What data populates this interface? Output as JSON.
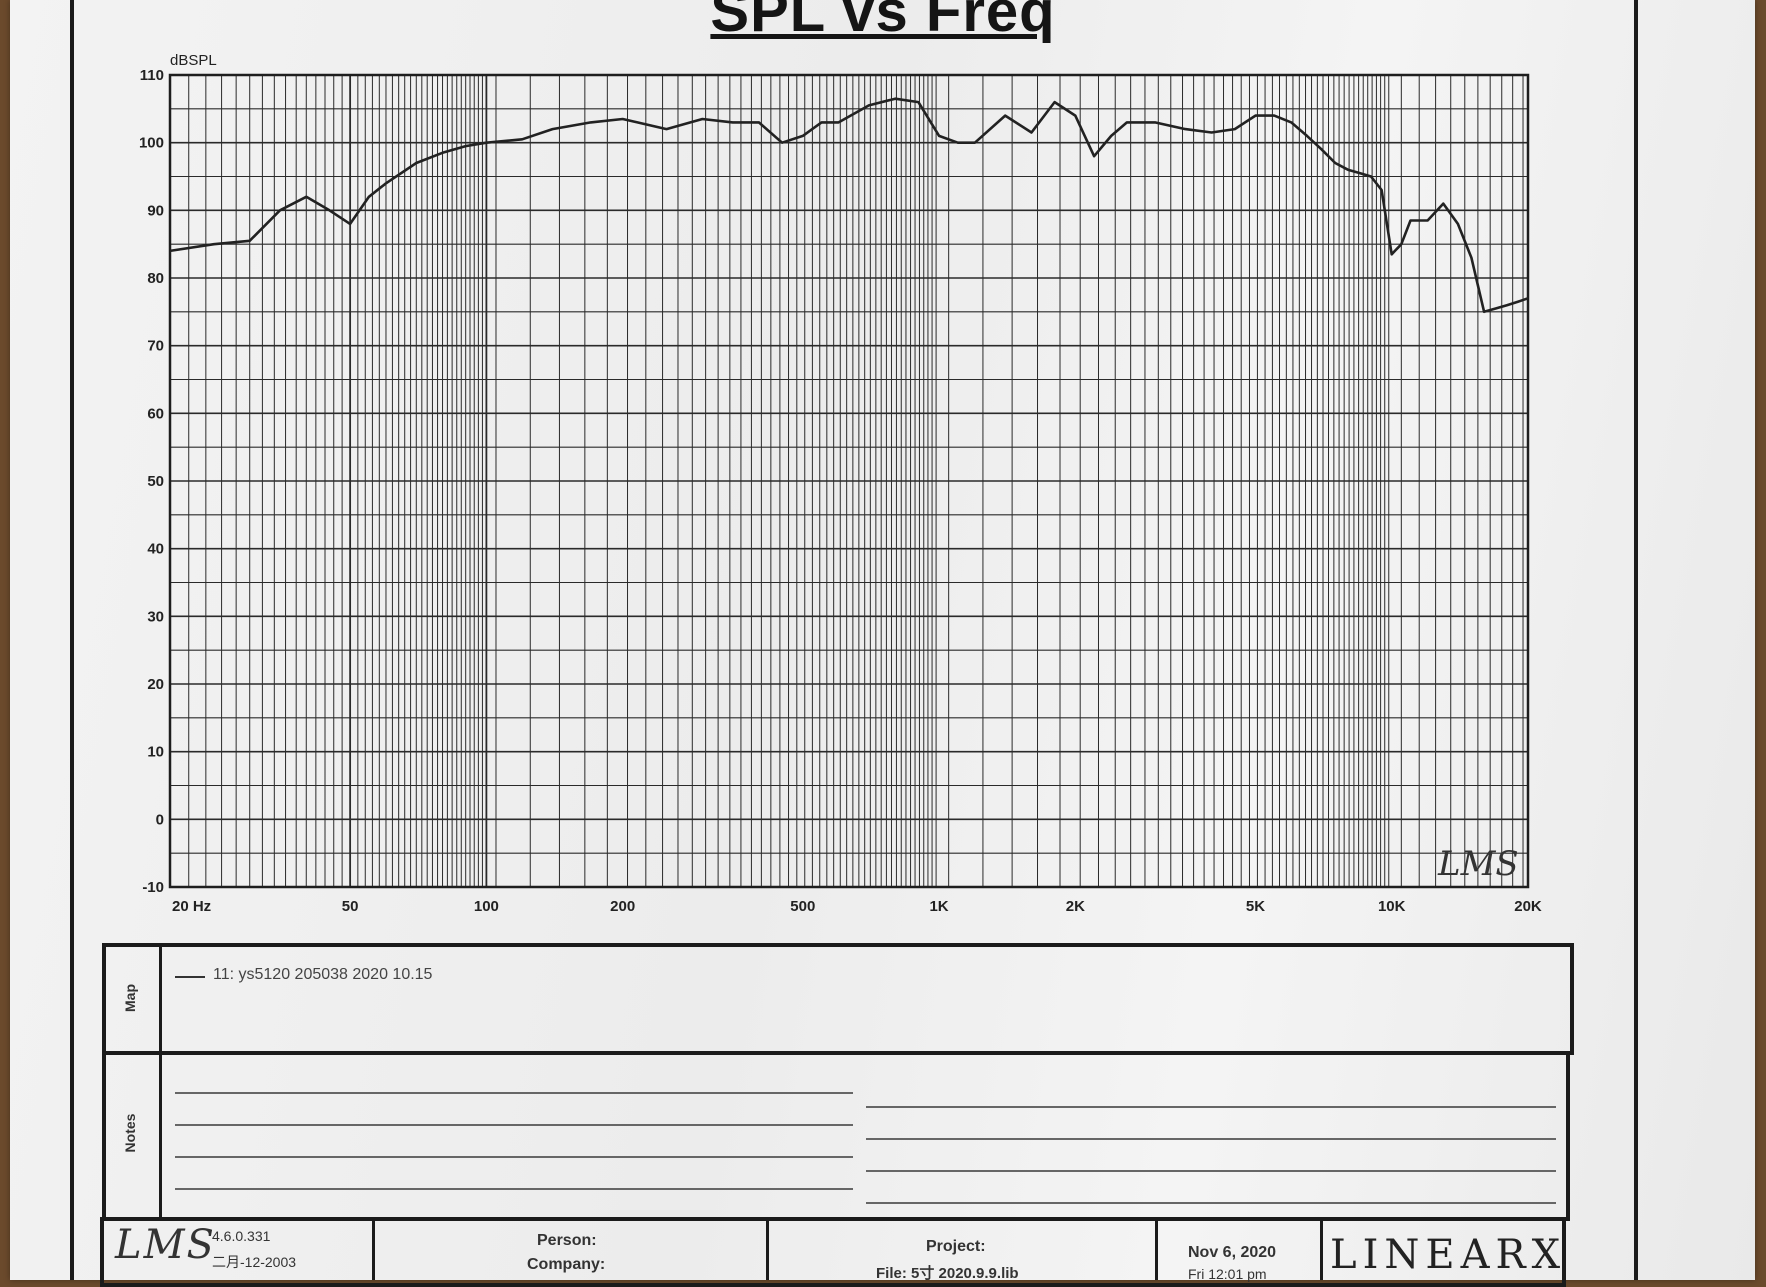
{
  "chart_data": {
    "type": "line",
    "title": "SPL vs Freq",
    "ylabel": "dBSPL",
    "ylim": [
      -10,
      110
    ],
    "y_ticks": [
      "110",
      "100",
      "90",
      "80",
      "70",
      "60",
      "50",
      "40",
      "30",
      "20",
      "10",
      "0",
      "-10"
    ],
    "x_scale": "log",
    "xlim": [
      20,
      20000
    ],
    "x_tick_labels": [
      {
        "value": 20,
        "label": "20 Hz"
      },
      {
        "value": 50,
        "label": "50"
      },
      {
        "value": 100,
        "label": "100"
      },
      {
        "value": 200,
        "label": "200"
      },
      {
        "value": 500,
        "label": "500"
      },
      {
        "value": 1000,
        "label": "1K"
      },
      {
        "value": 2000,
        "label": "2K"
      },
      {
        "value": 5000,
        "label": "5K"
      },
      {
        "value": 10000,
        "label": "10K"
      },
      {
        "value": 20000,
        "label": "20K"
      }
    ],
    "grid": true,
    "series": [
      {
        "name": "11: ys5120 205038  2020  10.15",
        "x": [
          20,
          25,
          30,
          35,
          40,
          45,
          50,
          55,
          60,
          70,
          80,
          90,
          100,
          120,
          140,
          170,
          200,
          250,
          300,
          350,
          400,
          450,
          500,
          550,
          600,
          700,
          800,
          900,
          1000,
          1100,
          1200,
          1400,
          1600,
          1800,
          2000,
          2200,
          2400,
          2600,
          2800,
          3000,
          3500,
          4000,
          4500,
          5000,
          5500,
          6000,
          6500,
          7000,
          7500,
          8000,
          8500,
          9000,
          9500,
          10000,
          10500,
          11000,
          11500,
          12000,
          13000,
          14000,
          15000,
          16000,
          17000,
          18000,
          19000,
          20000
        ],
        "y": [
          84,
          85,
          85.5,
          90,
          92,
          90,
          88,
          92,
          94,
          97,
          98.5,
          99.5,
          100,
          100.5,
          102,
          103,
          103.5,
          102,
          103.5,
          103,
          103,
          100,
          101,
          103,
          103,
          105.5,
          106.5,
          106,
          101,
          100,
          100,
          104,
          101.5,
          106,
          104,
          98,
          101,
          103,
          103,
          103,
          102,
          101.5,
          102,
          104,
          104,
          103,
          101,
          99,
          97,
          96,
          95.5,
          95,
          93,
          83.5,
          85,
          88.5,
          88.5,
          88.5,
          91,
          88,
          83,
          75,
          75.5,
          76,
          76.5,
          77
        ]
      }
    ]
  },
  "map": {
    "side_label": "Map",
    "legend_entry": "11: ys5120 205038  2020  10.15"
  },
  "notes": {
    "side_label": "Notes"
  },
  "footer": {
    "logo": "LMS",
    "version": "4.6.0.331",
    "build_date": "二月-12-2003",
    "person_label": "Person:",
    "company_label": "Company:",
    "project_label": "Project:",
    "file_label": "File: 5寸   2020.9.9.lib",
    "date": "Nov  6, 2020",
    "time": "Fri 12:01 pm",
    "brand": "LINEARX"
  },
  "watermark": "LMS"
}
